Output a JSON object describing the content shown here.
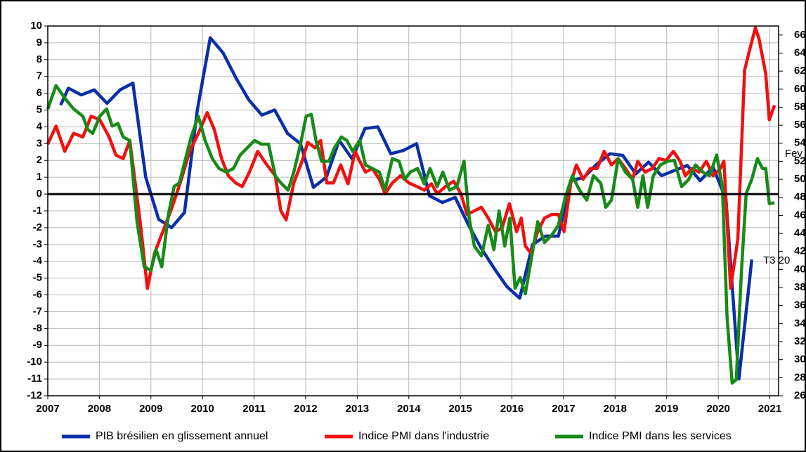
{
  "chart_data": {
    "type": "line",
    "xlim": [
      2007,
      2021.17
    ],
    "xticks": [
      2007,
      2008,
      2009,
      2010,
      2011,
      2012,
      2013,
      2014,
      2015,
      2016,
      2017,
      2018,
      2019,
      2020,
      2021
    ],
    "ylim": [
      -12,
      10
    ],
    "yticks": [
      -12,
      -11,
      -10,
      -9,
      -8,
      -7,
      -6,
      -5,
      -4,
      -3,
      -2,
      -1,
      0,
      1,
      2,
      3,
      4,
      5,
      6,
      7,
      8,
      9,
      10
    ],
    "y2lim": [
      26,
      67
    ],
    "y2ticks": [
      26,
      28,
      30,
      32,
      34,
      36,
      38,
      40,
      42,
      44,
      46,
      48,
      50,
      52,
      54,
      56,
      58,
      60,
      62,
      64,
      66
    ],
    "grid": true,
    "annotations": [
      {
        "text": "Fev"
      },
      {
        "text": "T3 20"
      }
    ],
    "series": [
      {
        "name": "PIB brésilien en glissement annuel",
        "color": "#0a2fa6",
        "x": [
          2007.25,
          2007.4,
          2007.65,
          2007.9,
          2008.15,
          2008.4,
          2008.65,
          2008.9,
          2009.15,
          2009.4,
          2009.65,
          2009.9,
          2010.15,
          2010.4,
          2010.65,
          2010.9,
          2011.15,
          2011.4,
          2011.65,
          2011.9,
          2012.15,
          2012.4,
          2012.65,
          2012.9,
          2013.15,
          2013.4,
          2013.65,
          2013.9,
          2014.15,
          2014.4,
          2014.65,
          2014.9,
          2015.15,
          2015.4,
          2015.65,
          2015.9,
          2016.15,
          2016.4,
          2016.65,
          2016.9,
          2017.15,
          2017.4,
          2017.65,
          2017.9,
          2018.15,
          2018.4,
          2018.65,
          2018.9,
          2019.15,
          2019.4,
          2019.65,
          2019.9,
          2020.15,
          2020.4,
          2020.65
        ],
        "values": [
          5.3,
          6.3,
          5.9,
          6.2,
          5.4,
          6.2,
          6.6,
          1.0,
          -1.5,
          -2.0,
          -1.1,
          5.0,
          9.3,
          8.4,
          6.9,
          5.6,
          4.7,
          5.0,
          3.6,
          3.0,
          0.4,
          1.0,
          3.2,
          2.1,
          3.9,
          4.0,
          2.4,
          2.6,
          3.0,
          -0.1,
          -0.5,
          -0.2,
          -1.8,
          -3.2,
          -4.4,
          -5.5,
          -6.2,
          -3.0,
          -2.5,
          -2.5,
          0.8,
          1.0,
          1.8,
          2.4,
          2.3,
          1.2,
          1.9,
          1.1,
          1.4,
          1.7,
          0.8,
          1.6,
          -0.3,
          -11.0,
          -3.9
        ]
      },
      {
        "name": "Indice PMI dans l'industrie",
        "color": "#f01010",
        "axis": "y2",
        "x": [
          2007.0,
          2007.16,
          2007.33,
          2007.5,
          2007.68,
          2007.84,
          2008.01,
          2008.19,
          2008.32,
          2008.46,
          2008.59,
          2008.8,
          2008.93,
          2009.07,
          2009.23,
          2009.41,
          2009.59,
          2009.75,
          2009.92,
          2010.09,
          2010.23,
          2010.37,
          2010.5,
          2010.64,
          2010.77,
          2010.91,
          2011.07,
          2011.25,
          2011.41,
          2011.52,
          2011.62,
          2011.77,
          2011.93,
          2012.04,
          2012.18,
          2012.29,
          2012.41,
          2012.54,
          2012.68,
          2012.82,
          2012.96,
          2013.05,
          2013.16,
          2013.29,
          2013.43,
          2013.54,
          2013.68,
          2013.84,
          2014.0,
          2014.16,
          2014.3,
          2014.44,
          2014.55,
          2014.71,
          2014.87,
          2015.01,
          2015.13,
          2015.27,
          2015.41,
          2015.54,
          2015.68,
          2015.81,
          2015.95,
          2016.09,
          2016.18,
          2016.26,
          2016.37,
          2016.5,
          2016.63,
          2016.77,
          2016.9,
          2017.01,
          2017.14,
          2017.25,
          2017.38,
          2017.52,
          2017.65,
          2017.79,
          2017.93,
          2018.06,
          2018.2,
          2018.34,
          2018.44,
          2018.58,
          2018.72,
          2018.85,
          2018.99,
          2019.13,
          2019.26,
          2019.36,
          2019.49,
          2019.63,
          2019.77,
          2019.9,
          2020.04,
          2020.11,
          2020.24,
          2020.38,
          2020.51,
          2020.62,
          2020.72,
          2020.79,
          2020.92,
          2020.99,
          2021.09
        ],
        "values": [
          53.9,
          55.9,
          53.1,
          55.1,
          54.7,
          57.0,
          56.6,
          54.7,
          52.7,
          52.3,
          54.3,
          44.9,
          37.9,
          41.8,
          44.2,
          46.9,
          50.0,
          53.1,
          55.1,
          57.4,
          55.5,
          52.3,
          50.4,
          49.6,
          49.2,
          50.8,
          53.1,
          51.6,
          50.4,
          46.5,
          45.5,
          49.6,
          52.0,
          54.1,
          53.5,
          54.3,
          49.6,
          49.6,
          51.6,
          49.5,
          53.1,
          52.0,
          50.8,
          51.2,
          50.0,
          48.4,
          49.6,
          50.4,
          49.6,
          49.2,
          48.8,
          49.5,
          48.4,
          49.2,
          49.8,
          48.4,
          46.1,
          46.5,
          46.9,
          45.7,
          44.2,
          44.6,
          47.3,
          44.2,
          45.7,
          42.6,
          41.8,
          44.2,
          45.7,
          46.1,
          46.1,
          44.2,
          49.6,
          51.6,
          50.0,
          51.2,
          51.2,
          53.1,
          51.6,
          52.3,
          51.2,
          50.0,
          52.0,
          50.8,
          51.2,
          52.3,
          52.1,
          53.1,
          52.0,
          50.4,
          51.2,
          50.8,
          52.0,
          50.4,
          51.2,
          52.0,
          37.9,
          43.4,
          62.1,
          64.6,
          66.8,
          65.6,
          61.7,
          56.6,
          58.2
        ]
      },
      {
        "name": "Indice PMI dans les services",
        "color": "#178a17",
        "axis": "y2",
        "x": [
          2007.0,
          2007.16,
          2007.33,
          2007.5,
          2007.68,
          2007.78,
          2007.87,
          2008.01,
          2008.14,
          2008.25,
          2008.36,
          2008.46,
          2008.59,
          2008.73,
          2008.87,
          2009.0,
          2009.1,
          2009.21,
          2009.34,
          2009.45,
          2009.55,
          2009.64,
          2009.78,
          2009.92,
          2010.05,
          2010.19,
          2010.32,
          2010.46,
          2010.6,
          2010.73,
          2010.87,
          2011.01,
          2011.14,
          2011.28,
          2011.41,
          2011.52,
          2011.66,
          2011.77,
          2011.9,
          2012.01,
          2012.11,
          2012.2,
          2012.31,
          2012.45,
          2012.56,
          2012.69,
          2012.8,
          2012.91,
          2013.05,
          2013.16,
          2013.29,
          2013.43,
          2013.54,
          2013.68,
          2013.81,
          2013.92,
          2014.03,
          2014.17,
          2014.3,
          2014.41,
          2014.55,
          2014.66,
          2014.79,
          2014.93,
          2015.07,
          2015.17,
          2015.27,
          2015.41,
          2015.54,
          2015.65,
          2015.75,
          2015.86,
          2015.96,
          2016.06,
          2016.16,
          2016.26,
          2016.37,
          2016.5,
          2016.63,
          2016.77,
          2016.9,
          2017.04,
          2017.17,
          2017.31,
          2017.45,
          2017.58,
          2017.72,
          2017.82,
          2017.93,
          2018.06,
          2018.2,
          2018.34,
          2018.44,
          2018.54,
          2018.63,
          2018.74,
          2018.88,
          2019.02,
          2019.15,
          2019.29,
          2019.43,
          2019.56,
          2019.7,
          2019.83,
          2019.97,
          2020.08,
          2020.17,
          2020.27,
          2020.35,
          2020.45,
          2020.54,
          2020.65,
          2020.76,
          2020.86,
          2020.92,
          2020.99,
          2021.09
        ],
        "values": [
          57.8,
          60.4,
          59.0,
          57.8,
          57.0,
          55.5,
          55.1,
          57.0,
          57.8,
          55.9,
          56.2,
          54.7,
          54.3,
          45.3,
          40.3,
          39.9,
          42.2,
          40.3,
          46.1,
          49.2,
          49.6,
          51.6,
          54.7,
          57.0,
          54.3,
          52.3,
          51.2,
          50.8,
          51.2,
          52.7,
          53.5,
          54.3,
          53.9,
          53.9,
          50.4,
          49.6,
          48.8,
          50.8,
          53.9,
          57.0,
          57.2,
          54.3,
          52.0,
          52.0,
          53.5,
          54.7,
          54.3,
          53.1,
          54.3,
          51.6,
          51.2,
          50.8,
          48.8,
          52.3,
          52.0,
          50.0,
          50.8,
          51.2,
          49.5,
          51.2,
          49.2,
          50.8,
          48.8,
          49.2,
          52.0,
          45.7,
          42.6,
          41.5,
          44.9,
          42.2,
          46.5,
          42.6,
          45.7,
          37.9,
          39.1,
          37.3,
          41.0,
          45.3,
          43.0,
          43.8,
          44.9,
          48.1,
          50.4,
          48.8,
          47.7,
          50.4,
          49.6,
          46.9,
          47.7,
          52.3,
          50.8,
          50.0,
          46.9,
          50.4,
          46.9,
          50.4,
          51.6,
          52.0,
          52.1,
          49.2,
          50.0,
          51.6,
          50.8,
          50.4,
          52.7,
          49.2,
          34.8,
          27.4,
          27.8,
          39.9,
          48.4,
          50.0,
          52.3,
          51.2,
          51.2,
          47.3,
          47.4
        ]
      }
    ]
  }
}
